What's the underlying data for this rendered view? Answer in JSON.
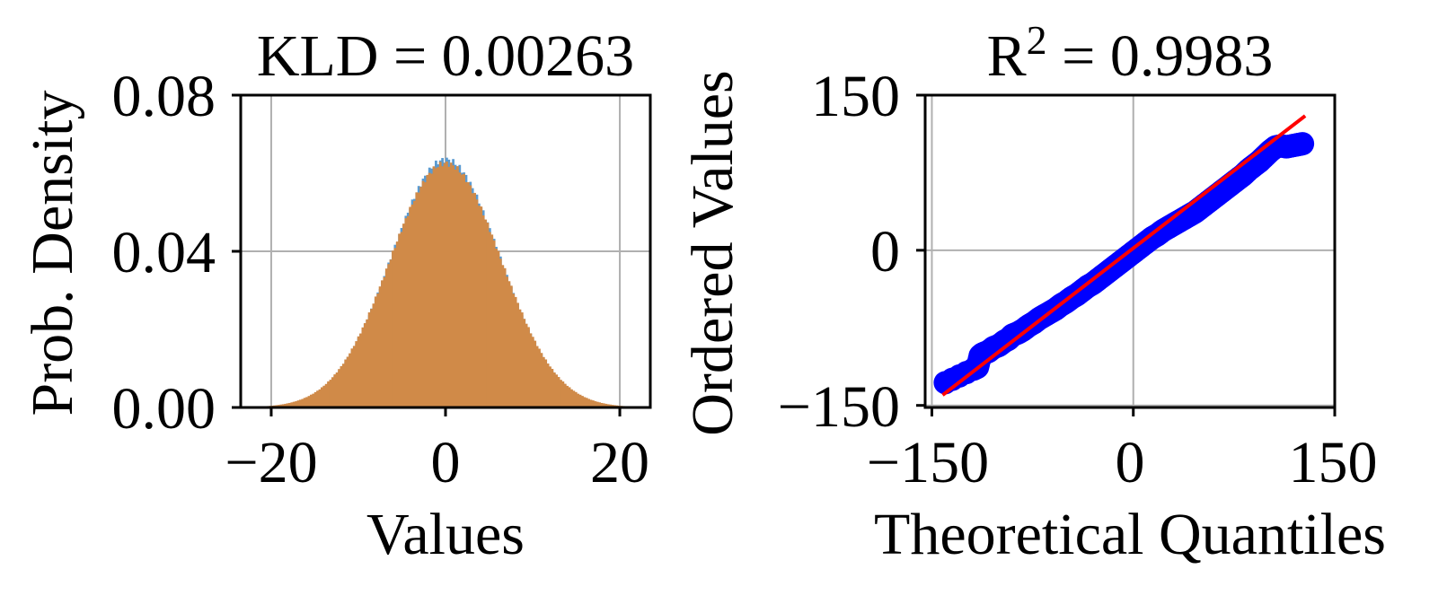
{
  "chart_data": [
    {
      "type": "histogram",
      "title": "KLD = 0.00263",
      "xlabel": "Values",
      "ylabel": "Prob. Density",
      "xlim": [
        -23.5,
        23.5
      ],
      "ylim": [
        0.0,
        0.08
      ],
      "xticks": [
        -20,
        0,
        20
      ],
      "xtick_labels": [
        "−20",
        "0",
        "20"
      ],
      "yticks": [
        0.0,
        0.04,
        0.08
      ],
      "ytick_labels": [
        "0.00",
        "0.04",
        "0.08"
      ],
      "grid": true,
      "series": [
        {
          "color": "#5b9bd1",
          "mean": 0.0,
          "std": 6.25,
          "peak": 0.0635,
          "range": [
            -21,
            21
          ]
        },
        {
          "color": "#d08a48",
          "mean": 0.0,
          "std": 6.35,
          "peak": 0.0625,
          "range": [
            -21,
            21
          ]
        }
      ]
    },
    {
      "type": "scatter",
      "title": "R² = 0.9983",
      "title_base": "R",
      "title_sup": "2",
      "title_rest": " = 0.9983",
      "xlabel": "Theoretical Quantiles",
      "ylabel": "Ordered Values",
      "xlim": [
        -155,
        150
      ],
      "ylim": [
        -152,
        150
      ],
      "xticks": [
        -150,
        0,
        150
      ],
      "xtick_labels": [
        "−150",
        "0",
        "150"
      ],
      "yticks": [
        -150,
        0,
        150
      ],
      "ytick_labels": [
        "−150",
        "0",
        "150"
      ],
      "grid": true,
      "points_color": "#0000ff",
      "line_color": "#ff0000",
      "fit_line": {
        "x": [
          -142,
          128
        ],
        "y": [
          -140,
          130
        ]
      },
      "points": [
        [
          -140,
          -128
        ],
        [
          -119,
          -115
        ],
        [
          -116,
          -113
        ],
        [
          -114,
          -102
        ],
        [
          -112,
          -100
        ],
        [
          -108,
          -98
        ],
        [
          -104,
          -94
        ],
        [
          -100,
          -92
        ],
        [
          -96,
          -88
        ],
        [
          -93,
          -86
        ],
        [
          -90,
          -82
        ],
        [
          -86,
          -80
        ],
        [
          -82,
          -77
        ],
        [
          -78,
          -73
        ],
        [
          -74,
          -70
        ],
        [
          -70,
          -66
        ],
        [
          -66,
          -63
        ],
        [
          -62,
          -60
        ],
        [
          -58,
          -57
        ],
        [
          -54,
          -53
        ],
        [
          -50,
          -50
        ],
        [
          -46,
          -46
        ],
        [
          -42,
          -43
        ],
        [
          -38,
          -39
        ],
        [
          -34,
          -35
        ],
        [
          -30,
          -32
        ],
        [
          -26,
          -28
        ],
        [
          -22,
          -24
        ],
        [
          -18,
          -20
        ],
        [
          -14,
          -16
        ],
        [
          -10,
          -12
        ],
        [
          -6,
          -8
        ],
        [
          -2,
          -4
        ],
        [
          2,
          0
        ],
        [
          6,
          4
        ],
        [
          10,
          8
        ],
        [
          14,
          12
        ],
        [
          18,
          15
        ],
        [
          22,
          19
        ],
        [
          26,
          22
        ],
        [
          30,
          25
        ],
        [
          34,
          28
        ],
        [
          38,
          31
        ],
        [
          42,
          34
        ],
        [
          46,
          37
        ],
        [
          50,
          41
        ],
        [
          54,
          45
        ],
        [
          58,
          49
        ],
        [
          62,
          53
        ],
        [
          66,
          57
        ],
        [
          70,
          61
        ],
        [
          74,
          65
        ],
        [
          78,
          69
        ],
        [
          82,
          73
        ],
        [
          86,
          78
        ],
        [
          90,
          82
        ],
        [
          94,
          86
        ],
        [
          98,
          91
        ],
        [
          102,
          96
        ],
        [
          106,
          100
        ],
        [
          110,
          101
        ],
        [
          114,
          100
        ],
        [
          118,
          101
        ],
        [
          122,
          102
        ],
        [
          126,
          103
        ]
      ]
    }
  ]
}
